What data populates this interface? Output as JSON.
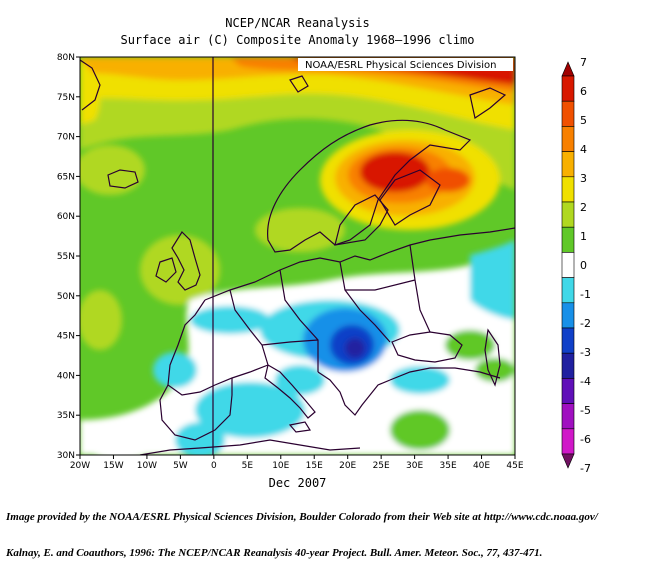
{
  "title": "NCEP/NCAR Reanalysis",
  "subtitle": "Surface air (C) Composite Anomaly 1968–1996 climo",
  "watermark": "NOAA/ESRL Physical Sciences Division",
  "period": "Dec 2007",
  "variable": "Surface air temperature anomaly (C)",
  "lon_ticks": [
    "20W",
    "15W",
    "10W",
    "5W",
    "0",
    "5E",
    "10E",
    "15E",
    "20E",
    "25E",
    "30E",
    "35E",
    "40E",
    "45E"
  ],
  "lat_ticks": [
    "80N",
    "75N",
    "70N",
    "65N",
    "60N",
    "55N",
    "50N",
    "45N",
    "40N",
    "35N",
    "30N"
  ],
  "colorbar": {
    "labels": [
      "7",
      "6",
      "5",
      "4",
      "3",
      "2",
      "1",
      "0",
      "-1",
      "-2",
      "-3",
      "-4",
      "-5",
      "-6",
      "-7"
    ],
    "colors": [
      "#a00000",
      "#d81800",
      "#f05000",
      "#f88000",
      "#f8b000",
      "#f0e000",
      "#b0d820",
      "#60c828",
      "#ffffff",
      "#40d8e8",
      "#1890e8",
      "#1040c8",
      "#2020a0",
      "#6010b8",
      "#a010c0",
      "#d018c8",
      "#701060"
    ]
  },
  "credit_line1": "Image provided by the NOAA/ESRL Physical Sciences Division, Boulder Colorado from their Web site at http://www.cdc.noaa.gov/",
  "credit_line2": "Kalnay, E. and Coauthors, 1996: The NCEP/NCAR Reanalysis 40-year Project. Bull. Amer. Meteor. Soc., 77, 437-471."
}
